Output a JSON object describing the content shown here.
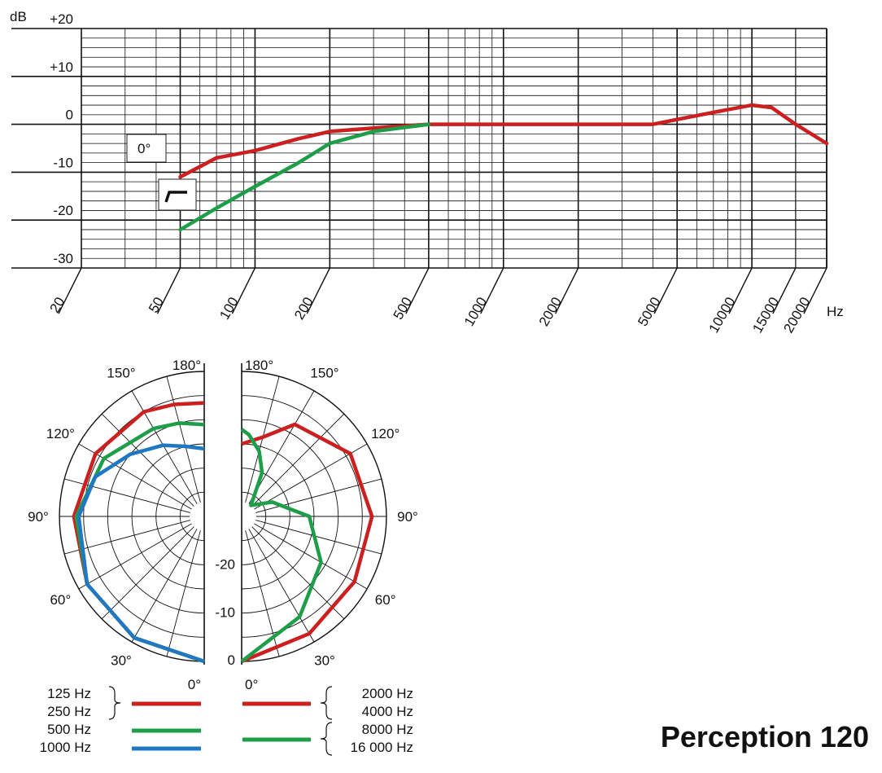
{
  "brand": {
    "name": "Perception 120"
  },
  "colors": {
    "red": "#cc1f1f",
    "green": "#1e9e48",
    "blue": "#1f78c1",
    "grid": "#111111"
  },
  "freq_chart": {
    "y_unit": "dB",
    "y_ticks": [
      "+20",
      "+10",
      "0",
      "-10",
      "-20",
      "-30"
    ],
    "x_unit": "Hz",
    "x_ticks": [
      "20",
      "50",
      "100",
      "200",
      "500",
      "1000",
      "2000",
      "5000",
      "10000",
      "15000",
      "20000"
    ],
    "angle_label": "0°",
    "filter_symbol": "low-cut-filter-icon"
  },
  "polar_chart": {
    "angle_labels_left": [
      "180°",
      "150°",
      "120°",
      "90°",
      "60°",
      "30°",
      "0°"
    ],
    "angle_labels_right": [
      "180°",
      "150°",
      "120°",
      "90°",
      "60°",
      "30°",
      "0°"
    ],
    "db_labels": [
      "-20",
      "-10",
      "0"
    ]
  },
  "legend": {
    "left": [
      {
        "lines": [
          "125 Hz",
          "250 Hz"
        ],
        "color": "red"
      },
      {
        "lines": [
          "500 Hz"
        ],
        "color": "green"
      },
      {
        "lines": [
          "1000 Hz"
        ],
        "color": "blue"
      }
    ],
    "right": [
      {
        "lines": [
          "2000 Hz",
          "4000 Hz"
        ],
        "color": "red"
      },
      {
        "lines": [
          "8000 Hz",
          "16 000 Hz"
        ],
        "color": "green"
      }
    ]
  },
  "chart_data": [
    {
      "type": "line",
      "x_scale": "log",
      "xlim": [
        20,
        20000
      ],
      "ylim": [
        -30,
        20
      ],
      "xlabel": "Hz",
      "ylabel": "dB",
      "grid": true,
      "series": [
        {
          "color": "red",
          "points": [
            [
              50,
              -11
            ],
            [
              70,
              -7
            ],
            [
              100,
              -5.5
            ],
            [
              150,
              -3
            ],
            [
              200,
              -1.5
            ],
            [
              300,
              -0.8
            ],
            [
              500,
              0
            ],
            [
              1000,
              0
            ],
            [
              2000,
              0
            ],
            [
              4000,
              0
            ],
            [
              5000,
              1
            ],
            [
              7000,
              2.5
            ],
            [
              10000,
              4
            ],
            [
              12000,
              3.5
            ],
            [
              15000,
              0
            ],
            [
              20000,
              -4
            ]
          ]
        },
        {
          "color": "green",
          "points": [
            [
              50,
              -22
            ],
            [
              70,
              -17.5
            ],
            [
              100,
              -13
            ],
            [
              150,
              -8
            ],
            [
              200,
              -4
            ],
            [
              300,
              -1.5
            ],
            [
              500,
              0
            ]
          ]
        }
      ]
    },
    {
      "type": "polar",
      "rlim": [
        -30,
        0
      ],
      "rings": [
        -25,
        -20,
        -15,
        -10,
        -5,
        0
      ],
      "angle_step": 15,
      "left_series": [
        {
          "color": "red",
          "points": [
            [
              0,
              0
            ],
            [
              30,
              -1
            ],
            [
              60,
              -2
            ],
            [
              90,
              -3
            ],
            [
              120,
              -4
            ],
            [
              150,
              -5
            ],
            [
              165,
              -6
            ],
            [
              180,
              -6.5
            ]
          ]
        },
        {
          "color": "green",
          "points": [
            [
              0,
              0
            ],
            [
              30,
              -1
            ],
            [
              60,
              -2
            ],
            [
              90,
              -3.5
            ],
            [
              120,
              -6
            ],
            [
              150,
              -9
            ],
            [
              165,
              -10
            ],
            [
              180,
              -11
            ]
          ]
        },
        {
          "color": "blue",
          "points": [
            [
              0,
              0
            ],
            [
              30,
              -1
            ],
            [
              60,
              -2
            ],
            [
              90,
              -4
            ],
            [
              110,
              -6
            ],
            [
              130,
              -10
            ],
            [
              150,
              -13
            ],
            [
              165,
              -15
            ],
            [
              180,
              -16
            ]
          ]
        }
      ],
      "right_series": [
        {
          "color": "red",
          "points": [
            [
              0,
              0
            ],
            [
              30,
              -2
            ],
            [
              60,
              -3
            ],
            [
              90,
              -3
            ],
            [
              120,
              -4
            ],
            [
              150,
              -8
            ],
            [
              165,
              -13
            ],
            [
              180,
              -15
            ]
          ]
        },
        {
          "color": "green",
          "points": [
            [
              0,
              0
            ],
            [
              30,
              -6
            ],
            [
              60,
              -11
            ],
            [
              90,
              -16
            ],
            [
              115,
              -23
            ],
            [
              140,
              -27
            ],
            [
              155,
              -20
            ],
            [
              165,
              -16
            ],
            [
              175,
              -13
            ],
            [
              180,
              -12
            ]
          ]
        }
      ]
    }
  ]
}
